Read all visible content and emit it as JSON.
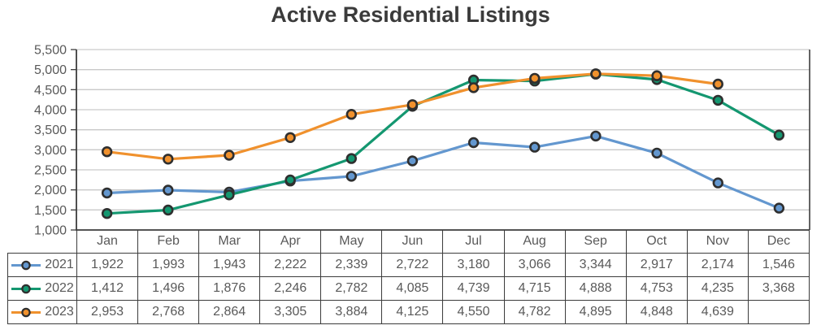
{
  "title": "Active Residential Listings",
  "chart_data": {
    "type": "line",
    "title": "Active Residential Listings",
    "categories": [
      "Jan",
      "Feb",
      "Mar",
      "Apr",
      "May",
      "Jun",
      "Jul",
      "Aug",
      "Sep",
      "Oct",
      "Nov",
      "Dec"
    ],
    "series": [
      {
        "name": "2021",
        "color": "#6397CF",
        "values": [
          1922,
          1993,
          1943,
          2222,
          2339,
          2722,
          3180,
          3066,
          3344,
          2917,
          2174,
          1546
        ]
      },
      {
        "name": "2022",
        "color": "#149770",
        "values": [
          1412,
          1496,
          1876,
          2246,
          2782,
          4085,
          4739,
          4715,
          4888,
          4753,
          4235,
          3368
        ]
      },
      {
        "name": "2023",
        "color": "#F0912D",
        "values": [
          2953,
          2768,
          2864,
          3305,
          3884,
          4125,
          4550,
          4782,
          4895,
          4848,
          4639,
          null
        ]
      }
    ],
    "ylim": [
      1000,
      5500
    ],
    "ytick_step": 500,
    "xlabel": "",
    "ylabel": "",
    "grid": "horizontal",
    "legend_position": "table-left",
    "colors": {
      "marker_outline": "#2f2f2f",
      "gridline": "#c9c9c9",
      "axis": "#3d3d3d",
      "tick_text": "#595959",
      "title_text": "#3b3b3b"
    }
  }
}
